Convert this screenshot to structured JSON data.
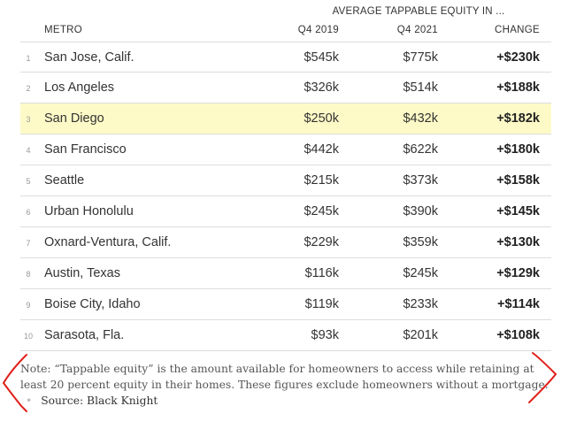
{
  "header": {
    "group_label": "AVERAGE TAPPABLE EQUITY IN ...",
    "columns": {
      "metro": "METRO",
      "q4_2019": "Q4 2019",
      "q4_2021": "Q4 2021",
      "change": "CHANGE"
    }
  },
  "rows": [
    {
      "rank": "1",
      "metro": "San Jose, Calif.",
      "q4_2019": "$545k",
      "q4_2021": "$775k",
      "change": "+$230k"
    },
    {
      "rank": "2",
      "metro": "Los Angeles",
      "q4_2019": "$326k",
      "q4_2021": "$514k",
      "change": "+$188k"
    },
    {
      "rank": "3",
      "metro": "San Diego",
      "q4_2019": "$250k",
      "q4_2021": "$432k",
      "change": "+$182k",
      "highlighted": true
    },
    {
      "rank": "4",
      "metro": "San Francisco",
      "q4_2019": "$442k",
      "q4_2021": "$622k",
      "change": "+$180k"
    },
    {
      "rank": "5",
      "metro": "Seattle",
      "q4_2019": "$215k",
      "q4_2021": "$373k",
      "change": "+$158k"
    },
    {
      "rank": "6",
      "metro": "Urban Honolulu",
      "q4_2019": "$245k",
      "q4_2021": "$390k",
      "change": "+$145k"
    },
    {
      "rank": "7",
      "metro": "Oxnard-Ventura, Calif.",
      "q4_2019": "$229k",
      "q4_2021": "$359k",
      "change": "+$130k"
    },
    {
      "rank": "8",
      "metro": "Austin, Texas",
      "q4_2019": "$116k",
      "q4_2021": "$245k",
      "change": "+$129k"
    },
    {
      "rank": "9",
      "metro": "Boise City, Idaho",
      "q4_2019": "$119k",
      "q4_2021": "$233k",
      "change": "+$114k"
    },
    {
      "rank": "10",
      "metro": "Sarasota, Fla.",
      "q4_2019": "$93k",
      "q4_2021": "$201k",
      "change": "+$108k"
    }
  ],
  "note": {
    "text": "Note: “Tappable equity” is the amount available for homeowners to access while retaining at least 20 percent equity in their homes. These figures exclude homeowners without a mortgage.",
    "separator": "•",
    "source": "Source: Black Knight"
  },
  "colors": {
    "highlight": "#fdfac7",
    "annotation": "#e0201a",
    "rule": "#dddddd"
  }
}
